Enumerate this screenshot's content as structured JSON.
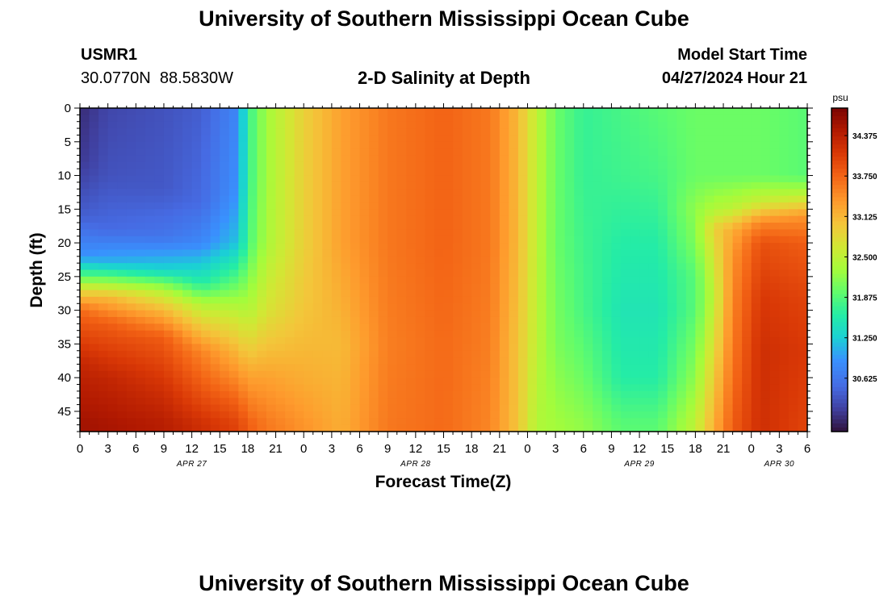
{
  "header": {
    "title": "University of Southern Mississippi Ocean Cube",
    "station_id": "USMR1",
    "station_coords": "30.0770N  88.5830W",
    "plot_subtitle": "2-D Salinity at Depth",
    "model_start_label": "Model Start Time",
    "model_start_value": "04/27/2024 Hour 21"
  },
  "footer": {
    "title": "University of Southern Mississippi Ocean Cube"
  },
  "chart_data": {
    "type": "heatmap",
    "title": "2-D Salinity at Depth",
    "xlabel": "Forecast Time(Z)",
    "ylabel": "Depth (ft)",
    "x_tick_labels": [
      "0",
      "3",
      "6",
      "9",
      "12",
      "15",
      "18",
      "21",
      "0",
      "3",
      "6",
      "9",
      "12",
      "15",
      "18",
      "21",
      "0",
      "3",
      "6",
      "9",
      "12",
      "15",
      "18",
      "21",
      "0",
      "3",
      "6"
    ],
    "x_range_hours_from_apr27_00z": [
      0,
      78
    ],
    "date_labels": [
      {
        "label": "APR 27",
        "center_hour": 12
      },
      {
        "label": "APR 28",
        "center_hour": 36
      },
      {
        "label": "APR 29",
        "center_hour": 60
      },
      {
        "label": "APR 30",
        "center_hour": 75
      }
    ],
    "y_ticks": [
      0,
      5,
      10,
      15,
      20,
      25,
      30,
      35,
      40,
      45
    ],
    "y_range": [
      0,
      48
    ],
    "y_inverted": true,
    "colorbar": {
      "unit": "psu",
      "range": [
        29.8,
        34.8
      ],
      "tick_labels": [
        "34.375",
        "33.750",
        "33.125",
        "32.500",
        "31.875",
        "31.250",
        "30.625"
      ],
      "ticks": [
        34.375,
        33.75,
        33.125,
        32.5,
        31.875,
        31.25,
        30.625
      ],
      "colormap": "turbo"
    },
    "salinity_profile_columns": [
      {
        "hour": 0,
        "depths": [
          0,
          8,
          16,
          22,
          25,
          27,
          30,
          38,
          47
        ],
        "values": [
          30.0,
          30.1,
          30.4,
          30.9,
          31.9,
          32.8,
          33.7,
          34.3,
          34.55
        ]
      },
      {
        "hour": 3,
        "depths": [
          0,
          10,
          18,
          23,
          26,
          28,
          32,
          40,
          47
        ],
        "values": [
          30.2,
          30.3,
          30.5,
          31.1,
          32.3,
          33.1,
          33.8,
          34.3,
          34.5
        ]
      },
      {
        "hour": 9,
        "depths": [
          0,
          12,
          19,
          24,
          27,
          30,
          34,
          42,
          47
        ],
        "values": [
          30.3,
          30.35,
          30.6,
          31.3,
          32.4,
          33.1,
          33.8,
          34.2,
          34.4
        ]
      },
      {
        "hour": 13,
        "depths": [
          0,
          14,
          20,
          26,
          29,
          32,
          36,
          44,
          47
        ],
        "values": [
          30.4,
          30.5,
          30.8,
          31.6,
          32.4,
          32.9,
          33.5,
          34.0,
          34.2
        ]
      },
      {
        "hour": 17,
        "depths": [
          0,
          12,
          20,
          27,
          31,
          36,
          44,
          47
        ],
        "values": [
          30.8,
          30.9,
          31.2,
          32.1,
          32.6,
          33.1,
          33.8,
          34.0
        ]
      },
      {
        "hour": 18,
        "depths": [
          0,
          10,
          20,
          30,
          40,
          47
        ],
        "values": [
          31.7,
          31.7,
          31.8,
          32.4,
          33.3,
          33.8
        ]
      },
      {
        "hour": 20,
        "depths": [
          0,
          10,
          20,
          30,
          40,
          47
        ],
        "values": [
          32.3,
          32.3,
          32.35,
          32.7,
          33.3,
          33.6
        ]
      },
      {
        "hour": 24,
        "depths": [
          0,
          10,
          20,
          30,
          40,
          47
        ],
        "values": [
          32.9,
          32.9,
          32.9,
          33.0,
          33.2,
          33.4
        ]
      },
      {
        "hour": 28,
        "depths": [
          0,
          20,
          35,
          47
        ],
        "values": [
          33.3,
          33.3,
          33.1,
          33.2
        ]
      },
      {
        "hour": 33,
        "depths": [
          0,
          20,
          35,
          47
        ],
        "values": [
          33.6,
          33.6,
          33.55,
          33.6
        ]
      },
      {
        "hour": 39,
        "depths": [
          0,
          20,
          35,
          47
        ],
        "values": [
          33.75,
          33.75,
          33.7,
          33.7
        ]
      },
      {
        "hour": 44,
        "depths": [
          0,
          20,
          35,
          47
        ],
        "values": [
          33.6,
          33.6,
          33.55,
          33.5
        ]
      },
      {
        "hour": 47,
        "depths": [
          0,
          20,
          35,
          47
        ],
        "values": [
          33.1,
          33.1,
          33.0,
          33.0
        ]
      },
      {
        "hour": 49,
        "depths": [
          0,
          20,
          35,
          47
        ],
        "values": [
          32.5,
          32.5,
          32.5,
          32.4
        ]
      },
      {
        "hour": 51,
        "depths": [
          0,
          20,
          35,
          47
        ],
        "values": [
          32.0,
          32.0,
          32.1,
          32.3
        ]
      },
      {
        "hour": 54,
        "depths": [
          0,
          10,
          20,
          30,
          40,
          47
        ],
        "values": [
          31.7,
          31.7,
          31.75,
          31.8,
          32.0,
          32.2
        ]
      },
      {
        "hour": 58,
        "depths": [
          0,
          10,
          20,
          30,
          40,
          47
        ],
        "values": [
          31.8,
          31.75,
          31.6,
          31.5,
          31.6,
          31.9
        ]
      },
      {
        "hour": 62,
        "depths": [
          0,
          10,
          20,
          30,
          40,
          47
        ],
        "values": [
          31.9,
          31.8,
          31.6,
          31.5,
          31.6,
          31.9
        ]
      },
      {
        "hour": 66,
        "depths": [
          0,
          10,
          15,
          20,
          25,
          30,
          40,
          47
        ],
        "values": [
          32.0,
          32.0,
          32.2,
          32.1,
          31.9,
          31.9,
          32.2,
          32.5
        ]
      },
      {
        "hour": 68,
        "depths": [
          0,
          10,
          15,
          18,
          22,
          28,
          36,
          47
        ],
        "values": [
          32.0,
          32.0,
          32.4,
          32.9,
          32.7,
          32.5,
          32.8,
          33.2
        ]
      },
      {
        "hour": 70,
        "depths": [
          0,
          10,
          15,
          18,
          22,
          28,
          36,
          47
        ],
        "values": [
          32.0,
          32.0,
          32.5,
          33.2,
          33.4,
          33.5,
          33.6,
          33.8
        ]
      },
      {
        "hour": 73,
        "depths": [
          0,
          10,
          14,
          17,
          20,
          28,
          36,
          47
        ],
        "values": [
          32.0,
          32.0,
          32.6,
          33.5,
          33.9,
          34.1,
          34.2,
          34.2
        ]
      },
      {
        "hour": 78,
        "depths": [
          0,
          10,
          13,
          16,
          20,
          28,
          36,
          47
        ],
        "values": [
          31.9,
          31.9,
          32.5,
          33.4,
          33.8,
          34.0,
          34.1,
          34.0
        ]
      }
    ]
  }
}
